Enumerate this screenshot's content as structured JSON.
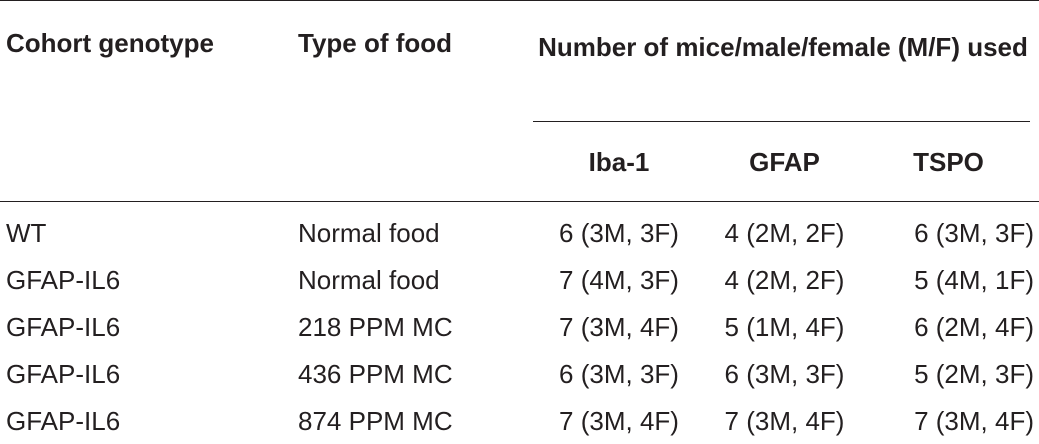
{
  "table": {
    "headers": {
      "cohort_genotype": "Cohort genotype",
      "type_of_food": "Type of food",
      "group_label": "Number of mice/male/female (M/F) used",
      "sub_columns": [
        "Iba-1",
        "GFAP",
        "TSPO"
      ]
    },
    "rows": [
      [
        "WT",
        "Normal food",
        "6 (3M, 3F)",
        "4 (2M, 2F)",
        "6 (3M, 3F)"
      ],
      [
        "GFAP-IL6",
        "Normal food",
        "7 (4M, 3F)",
        "4 (2M, 2F)",
        "5 (4M, 1F)"
      ],
      [
        "GFAP-IL6",
        "218 PPM MC",
        "7 (3M, 4F)",
        "5 (1M, 4F)",
        "6 (2M, 4F)"
      ],
      [
        "GFAP-IL6",
        "436 PPM MC",
        "6 (3M, 3F)",
        "6 (3M, 3F)",
        "5 (2M, 3F)"
      ],
      [
        "GFAP-IL6",
        "874 PPM MC",
        "7 (3M, 4F)",
        "7 (3M, 4F)",
        "7 (3M, 4F)"
      ]
    ]
  }
}
